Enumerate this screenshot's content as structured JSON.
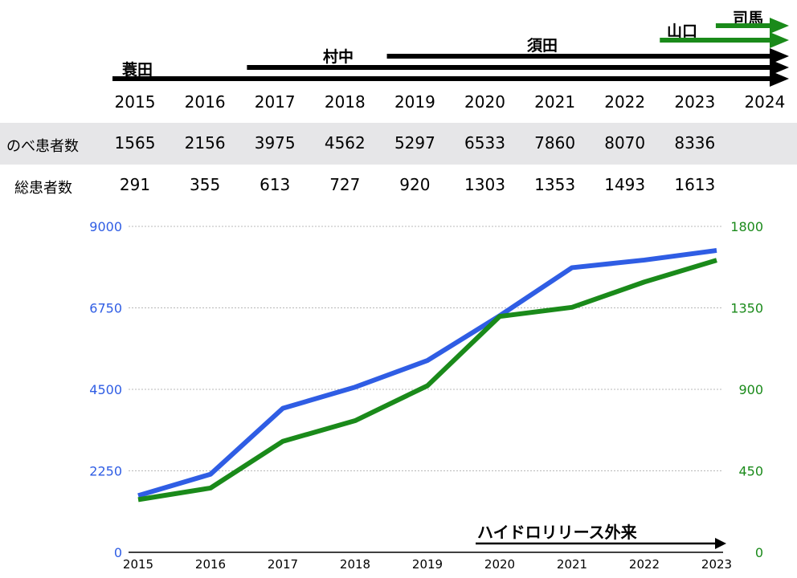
{
  "colors": {
    "blue": "#2f5de4",
    "green": "#1a8a1a",
    "black": "#000000",
    "grid": "#b8b8b8",
    "row_bg": "#e6e6e8"
  },
  "timeline": {
    "years": [
      "2015",
      "2016",
      "2017",
      "2018",
      "2019",
      "2020",
      "2021",
      "2022",
      "2023",
      "2024"
    ],
    "doctors": [
      {
        "name": "蓑田",
        "start": 2015,
        "end": 2024,
        "color": "#000000"
      },
      {
        "name": "村中",
        "start": 2016.6,
        "end": 2024,
        "color": "#000000"
      },
      {
        "name": "須田",
        "start": 2018.6,
        "end": 2024,
        "color": "#000000"
      },
      {
        "name": "山口",
        "start": 2022.5,
        "end": 2024,
        "color": "#1a8a1a"
      },
      {
        "name": "司馬",
        "start": 2023.3,
        "end": 2024,
        "color": "#1a8a1a"
      }
    ]
  },
  "table": {
    "rows": [
      {
        "label": "のべ患者数",
        "values": [
          "1565",
          "2156",
          "3975",
          "4562",
          "5297",
          "6533",
          "7860",
          "8070",
          "8336"
        ]
      },
      {
        "label": "総患者数",
        "values": [
          "291",
          "355",
          "613",
          "727",
          "920",
          "1303",
          "1353",
          "1493",
          "1613"
        ]
      }
    ]
  },
  "chart_data": {
    "type": "line",
    "categories": [
      "2015",
      "2016",
      "2017",
      "2018",
      "2019",
      "2020",
      "2021",
      "2022",
      "2023"
    ],
    "series": [
      {
        "name": "のべ患者数",
        "axis": "left",
        "color": "#2f5de4",
        "values": [
          1565,
          2156,
          3975,
          4562,
          5297,
          6533,
          7860,
          8070,
          8336
        ]
      },
      {
        "name": "総患者数",
        "axis": "right",
        "color": "#1a8a1a",
        "values": [
          291,
          355,
          613,
          727,
          920,
          1303,
          1353,
          1493,
          1613
        ]
      }
    ],
    "y_left": {
      "min": 0,
      "max": 9000,
      "ticks": [
        "0",
        "2250",
        "4500",
        "6750",
        "9000"
      ]
    },
    "y_right": {
      "min": 0,
      "max": 1800,
      "ticks": [
        "0",
        "450",
        "900",
        "1350",
        "1800"
      ]
    },
    "grid": true,
    "annotation": {
      "text": "ハイドロリリース外来",
      "start": "2020",
      "end": "2023"
    }
  }
}
